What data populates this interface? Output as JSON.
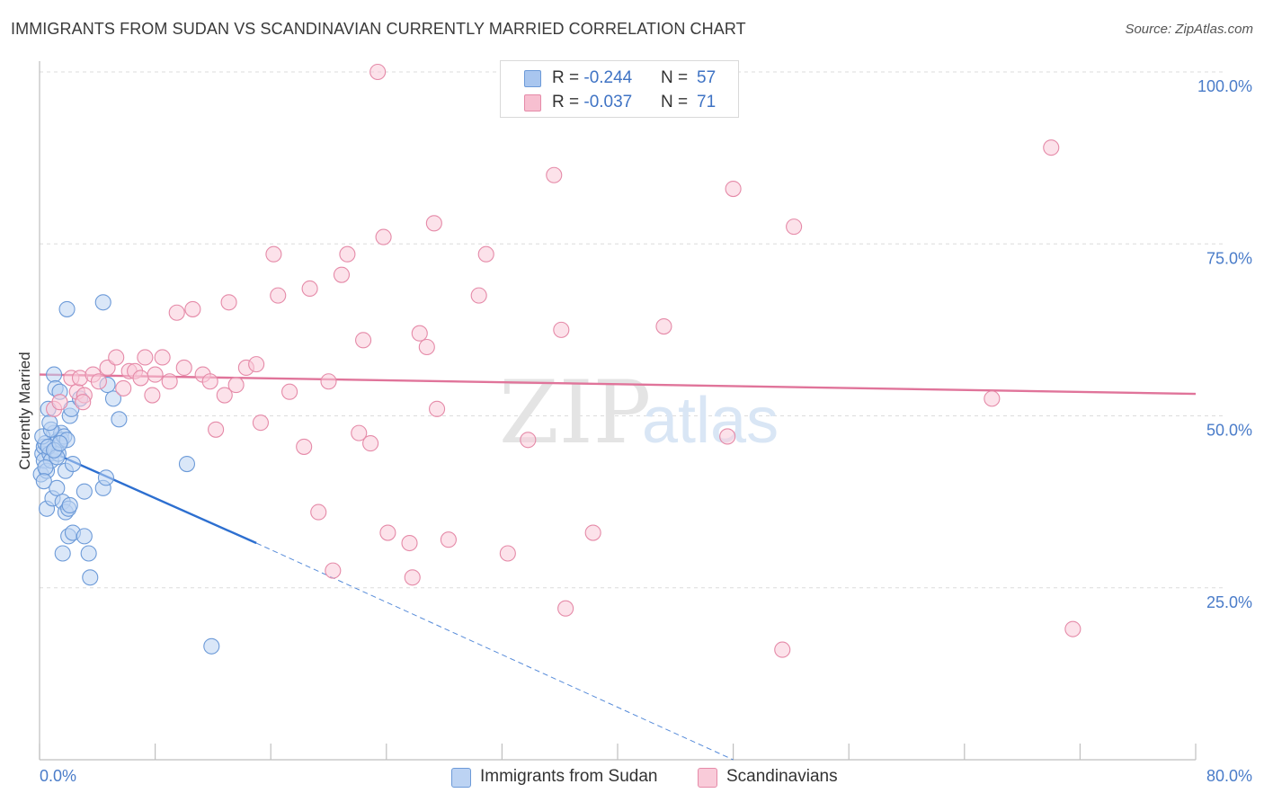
{
  "header": {
    "title": "IMMIGRANTS FROM SUDAN VS SCANDINAVIAN CURRENTLY MARRIED CORRELATION CHART",
    "source": "Source: ZipAtlas.com"
  },
  "watermark": {
    "part1": "ZIP",
    "part2": "atlas"
  },
  "legend": {
    "rows": [
      {
        "r_label": "R = ",
        "r_value": "-0.244",
        "n_label": "N = ",
        "n_value": "57",
        "color": "#a9c6ef",
        "border": "#6c9ad8"
      },
      {
        "r_label": "R = ",
        "r_value": "-0.037",
        "n_label": "N = ",
        "n_value": "71",
        "color": "#f7bfd0",
        "border": "#e58aa8"
      }
    ]
  },
  "bottom_legend": [
    {
      "label": "Immigrants from Sudan",
      "color": "#bcd3f3",
      "border": "#6c9ad8"
    },
    {
      "label": "Scandinavians",
      "color": "#f9cbd9",
      "border": "#e58aa8"
    }
  ],
  "chart_data": {
    "type": "scatter",
    "title": "IMMIGRANTS FROM SUDAN VS SCANDINAVIAN CURRENTLY MARRIED CORRELATION CHART",
    "xlabel": "",
    "ylabel": "Currently Married",
    "xlim": [
      0,
      80
    ],
    "ylim": [
      0,
      100
    ],
    "x_tick_labels": [
      "0.0%",
      "80.0%"
    ],
    "y_ticks": [
      25,
      50,
      75,
      100
    ],
    "y_tick_labels": [
      "25.0%",
      "50.0%",
      "75.0%",
      "100.0%"
    ],
    "grid": true,
    "legend_position": "top-center",
    "series": [
      {
        "name": "Immigrants from Sudan",
        "color": "#6c9ad8",
        "fill": "#bcd3f3",
        "trend": {
          "x": [
            0,
            15
          ],
          "y": [
            45.5,
            31.5
          ],
          "color": "#2d6fd0",
          "dashed_extension_to": [
            48,
            0
          ]
        },
        "points": [
          [
            0.1,
            41.5
          ],
          [
            0.2,
            44.5
          ],
          [
            0.3,
            45.5
          ],
          [
            0.3,
            43.5
          ],
          [
            0.4,
            46.0
          ],
          [
            0.5,
            42.0
          ],
          [
            0.5,
            36.5
          ],
          [
            0.6,
            51.0
          ],
          [
            0.7,
            44.5
          ],
          [
            0.8,
            43.5
          ],
          [
            0.9,
            38.0
          ],
          [
            1.0,
            56.0
          ],
          [
            1.0,
            47.5
          ],
          [
            1.1,
            45.0
          ],
          [
            1.1,
            54.0
          ],
          [
            1.2,
            39.5
          ],
          [
            1.3,
            46.5
          ],
          [
            1.3,
            44.5
          ],
          [
            1.4,
            53.5
          ],
          [
            1.5,
            47.5
          ],
          [
            1.5,
            46.5
          ],
          [
            1.6,
            37.5
          ],
          [
            1.6,
            30.0
          ],
          [
            1.7,
            47.0
          ],
          [
            1.8,
            36.0
          ],
          [
            1.8,
            42.0
          ],
          [
            1.9,
            46.5
          ],
          [
            2.0,
            32.5
          ],
          [
            2.0,
            36.5
          ],
          [
            2.1,
            50.0
          ],
          [
            2.1,
            37.0
          ],
          [
            2.2,
            51.0
          ],
          [
            2.3,
            43.0
          ],
          [
            2.3,
            33.0
          ],
          [
            2.8,
            52.5
          ],
          [
            3.1,
            32.5
          ],
          [
            3.1,
            39.0
          ],
          [
            3.4,
            30.0
          ],
          [
            3.5,
            26.5
          ],
          [
            1.9,
            65.5
          ],
          [
            4.4,
            66.5
          ],
          [
            4.4,
            39.5
          ],
          [
            4.6,
            41.0
          ],
          [
            4.7,
            54.5
          ],
          [
            5.1,
            52.5
          ],
          [
            5.5,
            49.5
          ],
          [
            10.2,
            43.0
          ],
          [
            11.9,
            16.5
          ],
          [
            0.2,
            47.0
          ],
          [
            0.6,
            45.5
          ],
          [
            0.8,
            48.0
          ],
          [
            1.2,
            44.0
          ],
          [
            0.4,
            42.5
          ],
          [
            0.7,
            49.0
          ],
          [
            1.0,
            45.0
          ],
          [
            1.4,
            46.0
          ],
          [
            0.3,
            40.5
          ]
        ]
      },
      {
        "name": "Scandinavians",
        "color": "#e58aa8",
        "fill": "#f9cbd9",
        "trend": {
          "x": [
            0,
            80
          ],
          "y": [
            56.0,
            53.2
          ],
          "color": "#e0749a"
        },
        "points": [
          [
            1.0,
            51.0
          ],
          [
            1.4,
            52.0
          ],
          [
            2.2,
            55.5
          ],
          [
            2.6,
            53.5
          ],
          [
            2.8,
            55.5
          ],
          [
            3.1,
            53.0
          ],
          [
            3.7,
            56.0
          ],
          [
            4.1,
            55.0
          ],
          [
            4.7,
            57.0
          ],
          [
            5.3,
            58.5
          ],
          [
            5.8,
            54.0
          ],
          [
            6.2,
            56.5
          ],
          [
            6.6,
            56.5
          ],
          [
            7.3,
            58.5
          ],
          [
            7.8,
            53.0
          ],
          [
            8.0,
            56.0
          ],
          [
            8.5,
            58.5
          ],
          [
            9.0,
            55.0
          ],
          [
            9.5,
            65.0
          ],
          [
            10.0,
            57.0
          ],
          [
            10.6,
            65.5
          ],
          [
            11.3,
            56.0
          ],
          [
            11.8,
            55.0
          ],
          [
            12.8,
            53.0
          ],
          [
            13.1,
            66.5
          ],
          [
            13.6,
            54.5
          ],
          [
            14.3,
            57.0
          ],
          [
            15.0,
            57.5
          ],
          [
            15.3,
            49.0
          ],
          [
            16.2,
            73.5
          ],
          [
            16.5,
            67.5
          ],
          [
            17.3,
            53.5
          ],
          [
            18.3,
            45.5
          ],
          [
            18.7,
            68.5
          ],
          [
            19.3,
            36.0
          ],
          [
            20.0,
            55.0
          ],
          [
            20.3,
            27.5
          ],
          [
            20.9,
            70.5
          ],
          [
            21.3,
            73.5
          ],
          [
            22.1,
            47.5
          ],
          [
            22.4,
            61.0
          ],
          [
            22.9,
            46.0
          ],
          [
            23.4,
            100.0
          ],
          [
            23.8,
            76.0
          ],
          [
            24.1,
            33.0
          ],
          [
            25.6,
            31.5
          ],
          [
            25.8,
            26.5
          ],
          [
            26.3,
            62.0
          ],
          [
            26.8,
            60.0
          ],
          [
            27.3,
            78.0
          ],
          [
            27.5,
            51.0
          ],
          [
            28.3,
            32.0
          ],
          [
            30.4,
            67.5
          ],
          [
            30.9,
            73.5
          ],
          [
            32.4,
            30.0
          ],
          [
            33.8,
            46.5
          ],
          [
            35.6,
            85.0
          ],
          [
            36.1,
            62.5
          ],
          [
            36.4,
            22.0
          ],
          [
            38.3,
            33.0
          ],
          [
            43.2,
            63.0
          ],
          [
            47.6,
            47.0
          ],
          [
            48.0,
            83.0
          ],
          [
            51.4,
            16.0
          ],
          [
            52.2,
            77.5
          ],
          [
            65.9,
            52.5
          ],
          [
            70.0,
            89.0
          ],
          [
            71.5,
            19.0
          ],
          [
            12.2,
            48.0
          ],
          [
            7.0,
            55.5
          ],
          [
            3.0,
            52.0
          ]
        ]
      }
    ]
  }
}
